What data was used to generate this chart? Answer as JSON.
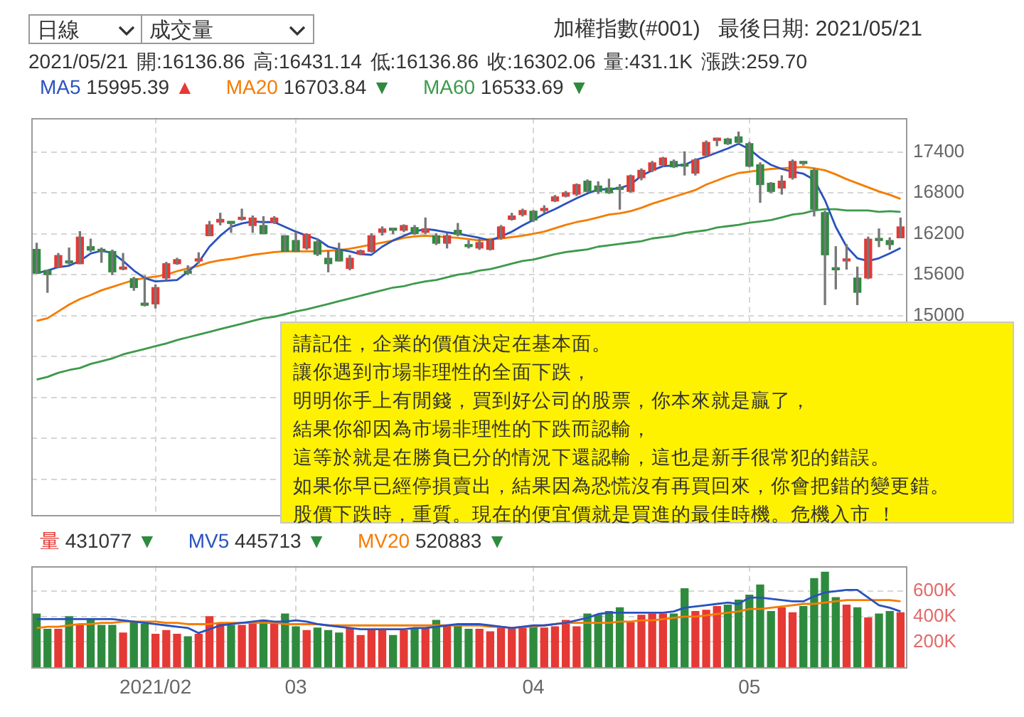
{
  "chart_data": [
    {
      "type": "candlestick",
      "categories": [
        null,
        null,
        null,
        null,
        null,
        null,
        null,
        null,
        null,
        null,
        null,
        "2021/02",
        null,
        null,
        null,
        null,
        null,
        null,
        null,
        null,
        null,
        null,
        null,
        null,
        "03",
        null,
        null,
        null,
        null,
        null,
        null,
        null,
        null,
        null,
        null,
        null,
        null,
        null,
        null,
        null,
        null,
        null,
        null,
        null,
        null,
        null,
        "04",
        null,
        null,
        null,
        null,
        null,
        null,
        null,
        null,
        null,
        null,
        null,
        null,
        null,
        null,
        null,
        null,
        null,
        null,
        null,
        "05",
        null,
        null,
        null,
        null,
        null,
        null,
        null,
        null,
        null,
        null,
        null,
        null,
        null,
        null
      ],
      "ohlc": [
        [
          15970,
          16060,
          15620,
          15620
        ],
        [
          15660,
          15660,
          15340,
          15600
        ],
        [
          15710,
          15910,
          15710,
          15880
        ],
        [
          15800,
          15990,
          15750,
          15770
        ],
        [
          15760,
          16230,
          15760,
          16150
        ],
        [
          16010,
          16120,
          15940,
          15960
        ],
        [
          15970,
          15990,
          15780,
          15940
        ],
        [
          15940,
          15960,
          15600,
          15640
        ],
        [
          15680,
          15910,
          15670,
          15710
        ],
        [
          15540,
          15560,
          15370,
          15410
        ],
        [
          15160,
          15580,
          15140,
          15150
        ],
        [
          15170,
          15450,
          15110,
          15410
        ],
        [
          15550,
          15780,
          15520,
          15760
        ],
        [
          15760,
          15840,
          15750,
          15820
        ],
        [
          15640,
          15730,
          15600,
          15620
        ],
        [
          15800,
          15920,
          15770,
          15810
        ],
        [
          16170,
          16380,
          16170,
          16330
        ],
        [
          16370,
          16500,
          16330,
          16410
        ],
        [
          16360,
          16360,
          16220,
          16350
        ],
        [
          16410,
          16560,
          16400,
          16430
        ],
        [
          16320,
          16460,
          16220,
          16430
        ],
        [
          16320,
          16450,
          16200,
          16200
        ],
        [
          16370,
          16450,
          16350,
          16430
        ],
        [
          16170,
          16170,
          15940,
          15940
        ],
        [
          16100,
          16220,
          15940,
          15940
        ],
        [
          15990,
          16200,
          15970,
          16190
        ],
        [
          16080,
          16120,
          15880,
          15900
        ],
        [
          15840,
          15940,
          15640,
          15760
        ],
        [
          15950,
          16060,
          15800,
          15800
        ],
        [
          15690,
          15880,
          15670,
          15840
        ],
        [
          15900,
          15960,
          15890,
          15950
        ],
        [
          15940,
          16200,
          15930,
          16170
        ],
        [
          16220,
          16300,
          16180,
          16270
        ],
        [
          16270,
          16280,
          16200,
          16250
        ],
        [
          16250,
          16330,
          16230,
          16320
        ],
        [
          16290,
          16320,
          16190,
          16200
        ],
        [
          16220,
          16430,
          16200,
          16270
        ],
        [
          16170,
          16200,
          16040,
          16060
        ],
        [
          16060,
          16200,
          15990,
          16170
        ],
        [
          16250,
          16350,
          16170,
          16190
        ],
        [
          16020,
          16100,
          15990,
          16010
        ],
        [
          15990,
          16120,
          15970,
          16070
        ],
        [
          15970,
          16120,
          15960,
          16100
        ],
        [
          16140,
          16320,
          16120,
          16300
        ],
        [
          16410,
          16500,
          16400,
          16460
        ],
        [
          16480,
          16560,
          16460,
          16540
        ],
        [
          16530,
          16540,
          16380,
          16400
        ],
        [
          16540,
          16610,
          16510,
          16560
        ],
        [
          16680,
          16760,
          16670,
          16740
        ],
        [
          16750,
          16820,
          16740,
          16800
        ],
        [
          16780,
          16930,
          16760,
          16920
        ],
        [
          16970,
          16990,
          16810,
          16820
        ],
        [
          16900,
          16960,
          16790,
          16820
        ],
        [
          16870,
          17000,
          16790,
          16800
        ],
        [
          16860,
          16920,
          16560,
          16850
        ],
        [
          16820,
          17060,
          16810,
          17050
        ],
        [
          17020,
          17150,
          16990,
          17130
        ],
        [
          17130,
          17260,
          17110,
          17240
        ],
        [
          17210,
          17320,
          17190,
          17310
        ],
        [
          17260,
          17280,
          17170,
          17180
        ],
        [
          17200,
          17400,
          17060,
          17190
        ],
        [
          17090,
          17300,
          17060,
          17280
        ],
        [
          17350,
          17560,
          17340,
          17540
        ],
        [
          17570,
          17600,
          17490,
          17580
        ],
        [
          17590,
          17600,
          17510,
          17520
        ],
        [
          17620,
          17690,
          17520,
          17540
        ],
        [
          17520,
          17540,
          17180,
          17190
        ],
        [
          17210,
          17240,
          16660,
          16920
        ],
        [
          16940,
          16950,
          16800,
          16820
        ],
        [
          16870,
          17050,
          16780,
          16970
        ],
        [
          17020,
          17280,
          17000,
          17260
        ],
        [
          17240,
          17260,
          17210,
          17230
        ],
        [
          17130,
          17150,
          16460,
          16560
        ],
        [
          16510,
          16530,
          15160,
          15890
        ],
        [
          15690,
          16010,
          15390,
          15670
        ],
        [
          15800,
          16040,
          15680,
          15820
        ],
        [
          15550,
          15710,
          15160,
          15340
        ],
        [
          15550,
          16150,
          15540,
          16120
        ],
        [
          16110,
          16270,
          16010,
          16100
        ],
        [
          16100,
          16140,
          15970,
          16040
        ],
        [
          16140,
          16430,
          16140,
          16300
        ]
      ],
      "colors": [
        "#2e8b3e",
        "#2e8b3e",
        "#e53935",
        "#2e8b3e",
        "#e53935",
        "#2e8b3e",
        "#2e8b3e",
        "#2e8b3e",
        "#e53935",
        "#2e8b3e",
        "#2e8b3e",
        "#e53935",
        "#e53935",
        "#e53935",
        "#2e8b3e",
        "#e53935",
        "#e53935",
        "#e53935",
        "#2e8b3e",
        "#e53935",
        "#e53935",
        "#2e8b3e",
        "#e53935",
        "#2e8b3e",
        "#2e8b3e",
        "#e53935",
        "#2e8b3e",
        "#2e8b3e",
        "#2e8b3e",
        "#e53935",
        "#e53935",
        "#e53935",
        "#e53935",
        "#2e8b3e",
        "#e53935",
        "#2e8b3e",
        "#e53935",
        "#2e8b3e",
        "#e53935",
        "#2e8b3e",
        "#2e8b3e",
        "#e53935",
        "#e53935",
        "#e53935",
        "#e53935",
        "#e53935",
        "#2e8b3e",
        "#e53935",
        "#e53935",
        "#e53935",
        "#e53935",
        "#2e8b3e",
        "#2e8b3e",
        "#2e8b3e",
        "#2e8b3e",
        "#e53935",
        "#e53935",
        "#e53935",
        "#e53935",
        "#2e8b3e",
        "#2e8b3e",
        "#e53935",
        "#e53935",
        "#e53935",
        "#2e8b3e",
        "#2e8b3e",
        "#2e8b3e",
        "#2e8b3e",
        "#2e8b3e",
        "#e53935",
        "#e53935",
        "#2e8b3e",
        "#2e8b3e",
        "#2e8b3e",
        "#2e8b3e",
        "#e53935",
        "#2e8b3e",
        "#e53935",
        "#2e8b3e",
        "#2e8b3e",
        "#e53935"
      ],
      "series": [
        {
          "name": "MA5",
          "type": "line",
          "color": "#2a52be",
          "values": [
            15620,
            15660,
            15710,
            15730,
            15800,
            15910,
            15950,
            15920,
            15800,
            15660,
            15550,
            15500,
            15510,
            15520,
            15640,
            15780,
            16010,
            16170,
            16300,
            16350,
            16380,
            16370,
            16370,
            16300,
            16230,
            16170,
            16120,
            16010,
            15970,
            15940,
            15900,
            15890,
            16010,
            16100,
            16170,
            16230,
            16270,
            16250,
            16220,
            16200,
            16170,
            16140,
            16100,
            16160,
            16230,
            16320,
            16400,
            16490,
            16560,
            16640,
            16720,
            16790,
            16850,
            16850,
            16870,
            16920,
            17050,
            17130,
            17190,
            17200,
            17210,
            17280,
            17330,
            17390,
            17450,
            17520,
            17440,
            17310,
            17210,
            17150,
            17110,
            17080,
            16990,
            16690,
            16300,
            16010,
            15840,
            15800,
            15840,
            15910,
            15990
          ]
        },
        {
          "name": "MA20",
          "type": "line",
          "color": "#f57c00",
          "values": [
            14920,
            14960,
            15060,
            15160,
            15240,
            15300,
            15370,
            15420,
            15470,
            15520,
            15550,
            15570,
            15600,
            15650,
            15690,
            15730,
            15780,
            15810,
            15830,
            15860,
            15890,
            15910,
            15930,
            15940,
            15940,
            15940,
            15940,
            15950,
            15960,
            15980,
            16010,
            16040,
            16070,
            16100,
            16140,
            16160,
            16170,
            16160,
            16150,
            16140,
            16120,
            16100,
            16120,
            16130,
            16150,
            16170,
            16200,
            16230,
            16280,
            16330,
            16370,
            16400,
            16440,
            16480,
            16500,
            16530,
            16580,
            16640,
            16690,
            16740,
            16790,
            16840,
            16920,
            16980,
            17040,
            17090,
            17110,
            17130,
            17150,
            17160,
            17170,
            17180,
            17160,
            17130,
            17070,
            17000,
            16940,
            16880,
            16820,
            16770,
            16710
          ]
        },
        {
          "name": "MA60",
          "type": "line",
          "color": "#3d9a4b",
          "values": [
            14060,
            14100,
            14160,
            14200,
            14230,
            14290,
            14330,
            14370,
            14430,
            14470,
            14510,
            14550,
            14590,
            14640,
            14680,
            14720,
            14760,
            14800,
            14840,
            14880,
            14920,
            14960,
            14980,
            15020,
            15060,
            15090,
            15130,
            15170,
            15210,
            15250,
            15290,
            15330,
            15370,
            15410,
            15430,
            15470,
            15500,
            15520,
            15560,
            15600,
            15620,
            15660,
            15680,
            15720,
            15760,
            15800,
            15820,
            15860,
            15900,
            15930,
            15950,
            15970,
            16010,
            16030,
            16050,
            16070,
            16090,
            16130,
            16150,
            16170,
            16210,
            16230,
            16250,
            16290,
            16310,
            16330,
            16360,
            16380,
            16400,
            16440,
            16480,
            16500,
            16540,
            16560,
            16560,
            16540,
            16540,
            16540,
            16520,
            16530,
            16520
          ]
        }
      ],
      "ylim": [
        12070,
        17900
      ],
      "yticks": [
        {
          "value": 12600,
          "label": null
        },
        {
          "value": 13200,
          "label": null
        },
        {
          "value": 13800,
          "label": null
        },
        {
          "value": 14400,
          "label": null
        },
        15000,
        15600,
        16200,
        16800,
        17400
      ],
      "grid": true,
      "legend": "top",
      "tick_labels": "y",
      "annotations": [
        "日線",
        "成交量",
        "加權指數(#001)",
        "最後日期: 2021/05/21",
        "2021/05/21 開:16136.86 高:16431.14 低:16136.86 收:16302.06 量:431.1K 漲跌:259.70",
        "15995.39 ▲",
        "16703.84 ▼",
        "16533.69 ▼",
        "請記住，企業的價值決定在基本面。",
        "讓你遇到市場非理性的全面下跌，",
        "明明你手上有閒錢，買到好公司的股票，你本來就是贏了，",
        "結果你卻因為市場非理性的下跌而認輸，",
        "這等於就是在勝負已分的情況下還認輸，這也是新手很常犯的錯誤。",
        "如果你早已經停損賣出，結果因為恐慌沒有再買回來，你會把錯的變更錯。",
        "股價下跌時，重質。現在的便宜價就是買進的最佳時機。危機入市 ！"
      ]
    },
    {
      "type": "bar",
      "categories": [
        null,
        null,
        null,
        null,
        null,
        null,
        null,
        null,
        null,
        null,
        null,
        "2021/02",
        null,
        null,
        null,
        null,
        null,
        null,
        null,
        null,
        null,
        null,
        null,
        null,
        "03",
        null,
        null,
        null,
        null,
        null,
        null,
        null,
        null,
        null,
        null,
        null,
        null,
        null,
        null,
        null,
        null,
        null,
        null,
        null,
        null,
        null,
        "04",
        null,
        null,
        null,
        null,
        null,
        null,
        null,
        null,
        null,
        null,
        null,
        null,
        null,
        null,
        null,
        null,
        null,
        null,
        null,
        "05",
        null,
        null,
        null,
        null,
        null,
        null,
        null,
        null,
        null,
        null,
        null,
        null,
        null,
        null
      ],
      "series": [
        {
          "name": "量",
          "type": "bar",
          "colors": [
            "#2e8b3e",
            "#2e8b3e",
            "#e53935",
            "#2e8b3e",
            "#e53935",
            "#2e8b3e",
            "#2e8b3e",
            "#2e8b3e",
            "#e53935",
            "#2e8b3e",
            "#2e8b3e",
            "#e53935",
            "#e53935",
            "#e53935",
            "#2e8b3e",
            "#e53935",
            "#e53935",
            "#e53935",
            "#2e8b3e",
            "#e53935",
            "#e53935",
            "#2e8b3e",
            "#e53935",
            "#2e8b3e",
            "#2e8b3e",
            "#e53935",
            "#2e8b3e",
            "#2e8b3e",
            "#2e8b3e",
            "#e53935",
            "#e53935",
            "#e53935",
            "#e53935",
            "#2e8b3e",
            "#e53935",
            "#2e8b3e",
            "#e53935",
            "#2e8b3e",
            "#e53935",
            "#2e8b3e",
            "#2e8b3e",
            "#e53935",
            "#e53935",
            "#e53935",
            "#e53935",
            "#e53935",
            "#2e8b3e",
            "#e53935",
            "#e53935",
            "#e53935",
            "#e53935",
            "#2e8b3e",
            "#2e8b3e",
            "#2e8b3e",
            "#2e8b3e",
            "#e53935",
            "#e53935",
            "#e53935",
            "#e53935",
            "#2e8b3e",
            "#2e8b3e",
            "#e53935",
            "#e53935",
            "#e53935",
            "#2e8b3e",
            "#2e8b3e",
            "#2e8b3e",
            "#2e8b3e",
            "#2e8b3e",
            "#e53935",
            "#e53935",
            "#2e8b3e",
            "#2e8b3e",
            "#2e8b3e",
            "#2e8b3e",
            "#e53935",
            "#2e8b3e",
            "#e53935",
            "#2e8b3e",
            "#2e8b3e",
            "#e53935"
          ],
          "values": [
            420000,
            300000,
            300000,
            400000,
            330000,
            380000,
            330000,
            330000,
            270000,
            350000,
            340000,
            260000,
            290000,
            260000,
            240000,
            260000,
            400000,
            340000,
            330000,
            330000,
            350000,
            370000,
            340000,
            420000,
            320000,
            290000,
            310000,
            290000,
            270000,
            310000,
            250000,
            300000,
            290000,
            250000,
            290000,
            300000,
            310000,
            370000,
            330000,
            330000,
            300000,
            300000,
            280000,
            310000,
            300000,
            310000,
            320000,
            310000,
            320000,
            370000,
            320000,
            420000,
            410000,
            440000,
            470000,
            350000,
            410000,
            420000,
            420000,
            420000,
            620000,
            440000,
            450000,
            480000,
            490000,
            530000,
            570000,
            650000,
            440000,
            470000,
            430000,
            480000,
            700000,
            750000,
            550000,
            490000,
            470000,
            390000,
            420000,
            440000,
            430000
          ]
        },
        {
          "name": "MV5",
          "type": "line",
          "color": "#2a52be",
          "values": [
            380000,
            380000,
            380000,
            380000,
            380000,
            380000,
            380000,
            380000,
            370000,
            360000,
            350000,
            340000,
            330000,
            320000,
            310000,
            270000,
            300000,
            330000,
            340000,
            350000,
            360000,
            370000,
            360000,
            360000,
            370000,
            360000,
            340000,
            330000,
            320000,
            310000,
            300000,
            300000,
            300000,
            300000,
            300000,
            310000,
            310000,
            320000,
            330000,
            340000,
            340000,
            340000,
            330000,
            320000,
            310000,
            320000,
            330000,
            330000,
            340000,
            350000,
            370000,
            390000,
            420000,
            430000,
            430000,
            430000,
            430000,
            430000,
            430000,
            440000,
            470000,
            480000,
            490000,
            500000,
            510000,
            500000,
            550000,
            550000,
            540000,
            530000,
            520000,
            520000,
            560000,
            590000,
            600000,
            610000,
            610000,
            550000,
            490000,
            470000,
            440000
          ]
        },
        {
          "name": "MV20",
          "type": "line",
          "color": "#f57c00",
          "values": [
            310000,
            320000,
            320000,
            330000,
            340000,
            340000,
            350000,
            350000,
            360000,
            360000,
            360000,
            360000,
            350000,
            350000,
            340000,
            340000,
            340000,
            350000,
            350000,
            350000,
            350000,
            350000,
            350000,
            340000,
            340000,
            340000,
            340000,
            330000,
            330000,
            330000,
            330000,
            330000,
            330000,
            330000,
            330000,
            330000,
            330000,
            330000,
            330000,
            330000,
            330000,
            330000,
            320000,
            320000,
            310000,
            320000,
            320000,
            330000,
            340000,
            350000,
            350000,
            350000,
            350000,
            350000,
            360000,
            360000,
            370000,
            370000,
            380000,
            390000,
            400000,
            400000,
            410000,
            420000,
            430000,
            440000,
            460000,
            460000,
            470000,
            480000,
            490000,
            500000,
            500000,
            510000,
            520000,
            530000,
            530000,
            530000,
            530000,
            530000,
            520000
          ]
        }
      ],
      "ylim": [
        0,
        800000
      ],
      "yticks": [
        {
          "value": 200000,
          "label": "200K"
        },
        {
          "value": 400000,
          "label": "400K"
        },
        {
          "value": 600000,
          "label": "600K"
        }
      ],
      "grid": true,
      "legend": "top",
      "annotations": [
        "431077 ▼",
        "445713 ▼",
        "520883 ▼"
      ]
    }
  ]
}
